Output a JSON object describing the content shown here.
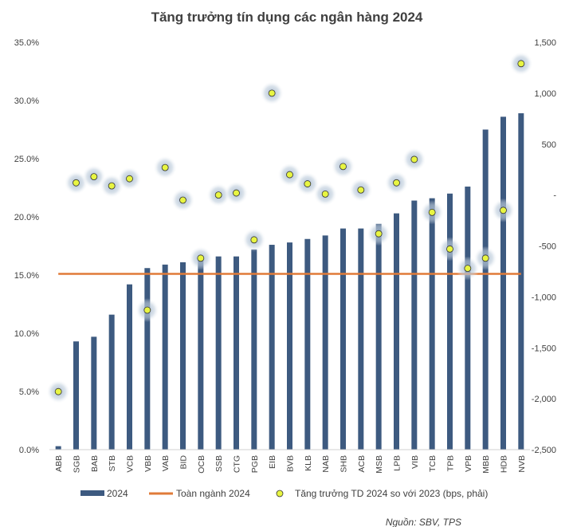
{
  "chart_data": {
    "type": "bar",
    "title": "Tăng trưởng tín dụng các ngân hàng 2024",
    "categories": [
      "ABB",
      "SGB",
      "BAB",
      "STB",
      "VCB",
      "VBB",
      "VAB",
      "BID",
      "OCB",
      "SSB",
      "CTG",
      "PGB",
      "EIB",
      "BVB",
      "KLB",
      "NAB",
      "SHB",
      "ACB",
      "MSB",
      "LPB",
      "VIB",
      "TCB",
      "TPB",
      "VPB",
      "MBB",
      "HDB",
      "NVB"
    ],
    "series": [
      {
        "name": "2024",
        "axis": "left",
        "kind": "bar",
        "color": "#3d5a80",
        "values": [
          0.3,
          9.3,
          9.7,
          11.6,
          14.2,
          15.6,
          15.9,
          16.1,
          16.5,
          16.6,
          16.6,
          17.2,
          17.6,
          17.8,
          18.1,
          18.4,
          19.0,
          19.0,
          19.4,
          20.3,
          21.4,
          21.6,
          22.0,
          22.6,
          27.5,
          28.6,
          28.9
        ]
      },
      {
        "name": "Toàn ngành 2024",
        "axis": "left",
        "kind": "line",
        "color": "#e07b39",
        "value": 15.1
      },
      {
        "name": "Tăng trưởng TD 2024 so với 2023 (bps, phải)",
        "axis": "right",
        "kind": "scatter",
        "color": "#e8f542",
        "values": [
          -1930,
          120,
          180,
          90,
          160,
          -1130,
          270,
          -50,
          -620,
          0,
          20,
          -440,
          1000,
          200,
          110,
          10,
          280,
          50,
          -380,
          120,
          350,
          -170,
          -530,
          -720,
          -620,
          -150,
          1290
        ]
      }
    ],
    "yleft": {
      "min": 0,
      "max": 35,
      "step": 5,
      "ticks": [
        "0.0%",
        "5.0%",
        "10.0%",
        "15.0%",
        "20.0%",
        "25.0%",
        "30.0%",
        "35.0%"
      ]
    },
    "yright": {
      "min": -2500,
      "max": 1500,
      "step": 500,
      "ticks": [
        "-2,500",
        "-2,000",
        "-1,500",
        "-1,000",
        "-500",
        "-",
        "500",
        "1,000",
        "1,500"
      ]
    },
    "legend_position": "bottom",
    "grid": false,
    "source": "Nguồn: SBV, TPS"
  }
}
